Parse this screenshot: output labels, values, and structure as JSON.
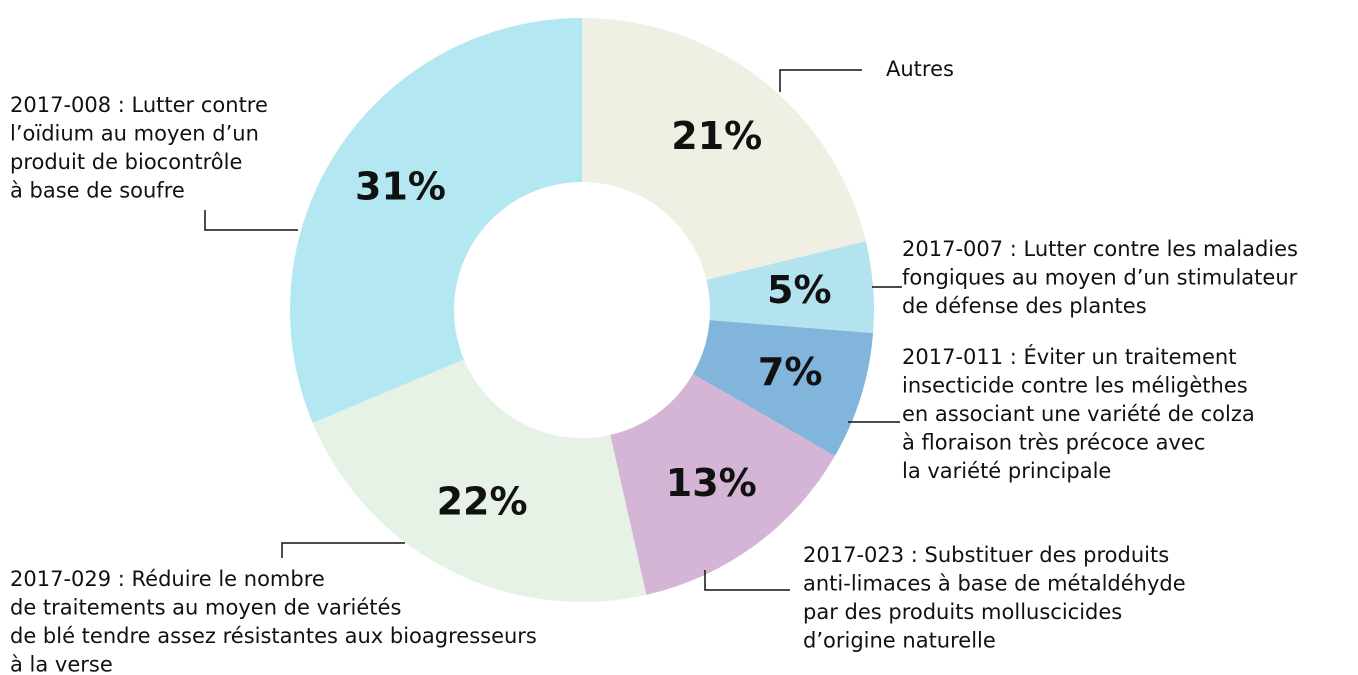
{
  "chart_data": {
    "type": "pie",
    "categories": [
      [
        "Autres"
      ],
      [
        "2017-007 : Lutter contre les maladies",
        "fongiques au moyen d’un stimulateur",
        "de défense des plantes"
      ],
      [
        "2017-011 : Éviter un traitement",
        "insecticide contre les méligèthes",
        "en associant une variété de colza",
        "à floraison très précoce avec",
        "la variété principale"
      ],
      [
        "2017-023 : Substituer des produits",
        "anti-limaces à base de métaldéhyde",
        "par des produits molluscicides",
        "d’origine naturelle"
      ],
      [
        "2017-029 : Réduire le nombre",
        "de traitements au moyen de variétés",
        "de blé tendre assez résistantes aux bioagresseurs",
        "à la verse"
      ],
      [
        "2017-008 : Lutter contre",
        "l’oïdium au moyen d’un",
        "produit de biocontrôle",
        "à base de soufre"
      ]
    ],
    "values": [
      21,
      5,
      7,
      13,
      22,
      31
    ],
    "value_labels": [
      "21%",
      "5%",
      "7%",
      "13%",
      "22%",
      "31%"
    ],
    "colors": [
      "#f0efe3",
      "#b3e3ee",
      "#82b5dc",
      "#d4b5d6",
      "#e5f2e5",
      "#b3e8f2"
    ],
    "donut": true
  }
}
